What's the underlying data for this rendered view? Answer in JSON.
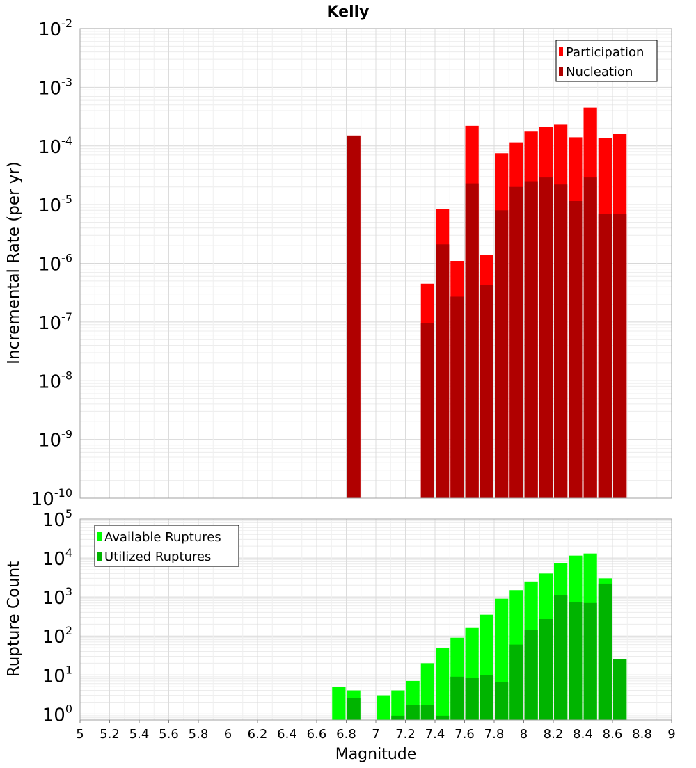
{
  "title": "Kelly",
  "xlabel": "Magnitude",
  "xlim": [
    5,
    9
  ],
  "x_ticks": [
    "5",
    "5.2",
    "5.4",
    "5.6",
    "5.8",
    "6",
    "6.2",
    "6.4",
    "6.6",
    "6.8",
    "7",
    "7.2",
    "7.4",
    "7.6",
    "7.8",
    "8",
    "8.2",
    "8.4",
    "8.6",
    "8.8",
    "9"
  ],
  "chart_data": [
    {
      "type": "bar",
      "ylabel": "Incremental Rate (per yr)",
      "yscale": "log",
      "ylim": [
        1e-10,
        0.01
      ],
      "y_tick_exponents": [
        "-10",
        "-9",
        "-8",
        "-7",
        "-6",
        "-5",
        "-4",
        "-3",
        "-2"
      ],
      "y_tick_base": "10",
      "legend_position": "top-right",
      "x": [
        6.85,
        7.35,
        7.45,
        7.55,
        7.65,
        7.75,
        7.85,
        7.95,
        8.05,
        8.15,
        8.25,
        8.35,
        8.45,
        8.55,
        8.65
      ],
      "series": [
        {
          "name": "Participation",
          "color": "#ff0000",
          "values": [
            0.00015,
            4.5e-07,
            8.5e-06,
            1.1e-06,
            0.00022,
            1.4e-06,
            7.5e-05,
            0.000115,
            0.000175,
            0.00021,
            0.000235,
            0.00014,
            0.00045,
            0.000135,
            0.00016
          ]
        },
        {
          "name": "Nucleation",
          "color": "#b00000",
          "values": [
            0.00015,
            9.5e-08,
            2.1e-06,
            2.7e-07,
            2.3e-05,
            4.3e-07,
            8e-06,
            2e-05,
            2.5e-05,
            2.9e-05,
            2.2e-05,
            1.15e-05,
            2.9e-05,
            7e-06,
            7e-06
          ]
        }
      ]
    },
    {
      "type": "bar",
      "ylabel": "Rupture Count",
      "yscale": "log",
      "ylim": [
        0.7,
        100000
      ],
      "y_tick_exponents": [
        "0",
        "1",
        "2",
        "3",
        "4",
        "5"
      ],
      "y_tick_base": "10",
      "legend_position": "top-left",
      "x": [
        6.75,
        6.85,
        7.05,
        7.15,
        7.25,
        7.35,
        7.45,
        7.55,
        7.65,
        7.75,
        7.85,
        7.95,
        8.05,
        8.15,
        8.25,
        8.35,
        8.45,
        8.55,
        8.65
      ],
      "series": [
        {
          "name": "Available Ruptures",
          "color": "#00ff00",
          "values": [
            5,
            4,
            3,
            4,
            7,
            20,
            50,
            90,
            160,
            350,
            900,
            1500,
            2500,
            4000,
            7500,
            11500,
            13000,
            3000,
            25
          ]
        },
        {
          "name": "Utilized Ruptures",
          "color": "#00b400",
          "values": [
            null,
            2.5,
            null,
            0.9,
            1.7,
            1.7,
            0.9,
            9,
            8.5,
            10,
            6.5,
            60,
            140,
            270,
            1100,
            750,
            700,
            2200,
            25
          ]
        }
      ]
    }
  ]
}
